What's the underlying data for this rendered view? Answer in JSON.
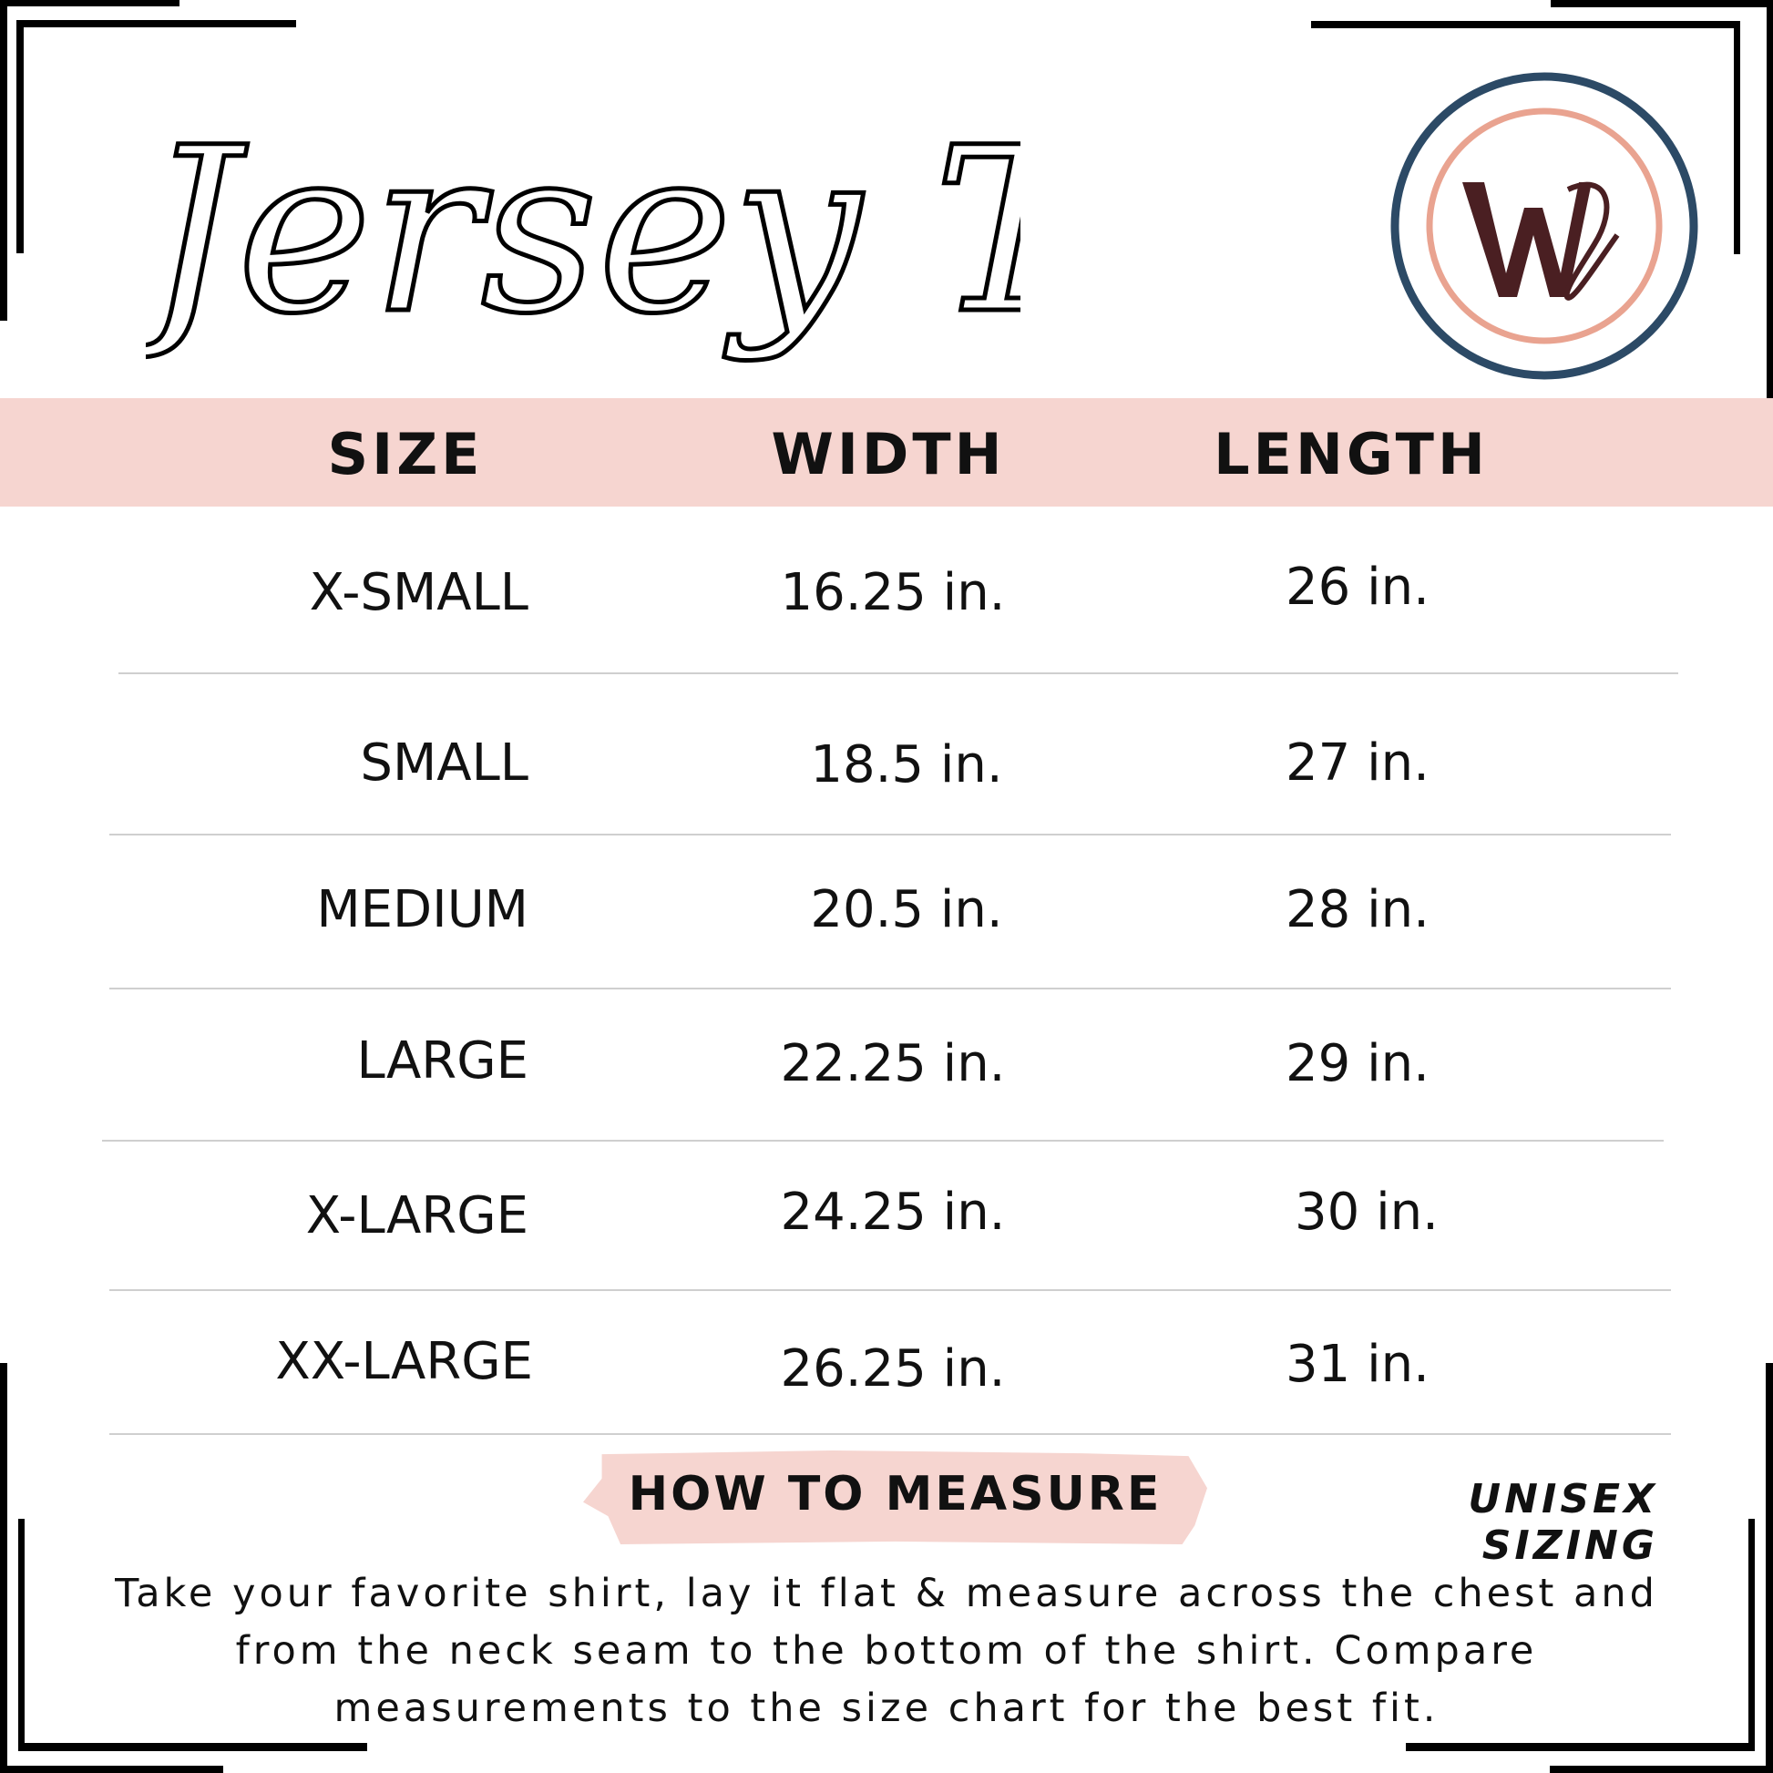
{
  "title": "Jersey Tank",
  "logo": {
    "monogram": "WD",
    "colors": {
      "outer_ring": "#2c4a66",
      "inner_ring": "#e9a390",
      "letters": "#4a1f22"
    }
  },
  "colors": {
    "band": "#f6d5d0",
    "text": "#111111"
  },
  "table": {
    "headers": {
      "size": "SIZE",
      "width": "WIDTH",
      "length": "LENGTH"
    },
    "rows": [
      {
        "size": "X-SMALL",
        "width": "16.25 in.",
        "length": "26 in."
      },
      {
        "size": "SMALL",
        "width": "18.5 in.",
        "length": "27 in."
      },
      {
        "size": "MEDIUM",
        "width": "20.5 in.",
        "length": "28 in."
      },
      {
        "size": "LARGE",
        "width": "22.25 in.",
        "length": "29 in."
      },
      {
        "size": "X-LARGE",
        "width": "24.25 in.",
        "length": "30 in."
      },
      {
        "size": "XX-LARGE",
        "width": "26.25 in.",
        "length": "31 in."
      }
    ]
  },
  "footer": {
    "how_to_measure": "HOW TO MEASURE",
    "unisex": "UNISEX SIZING",
    "lines": [
      "Take your favorite shirt, lay it flat & measure across the chest and",
      "from the neck seam to the bottom of the shirt. Compare",
      "measurements to the size chart for the best fit."
    ]
  }
}
